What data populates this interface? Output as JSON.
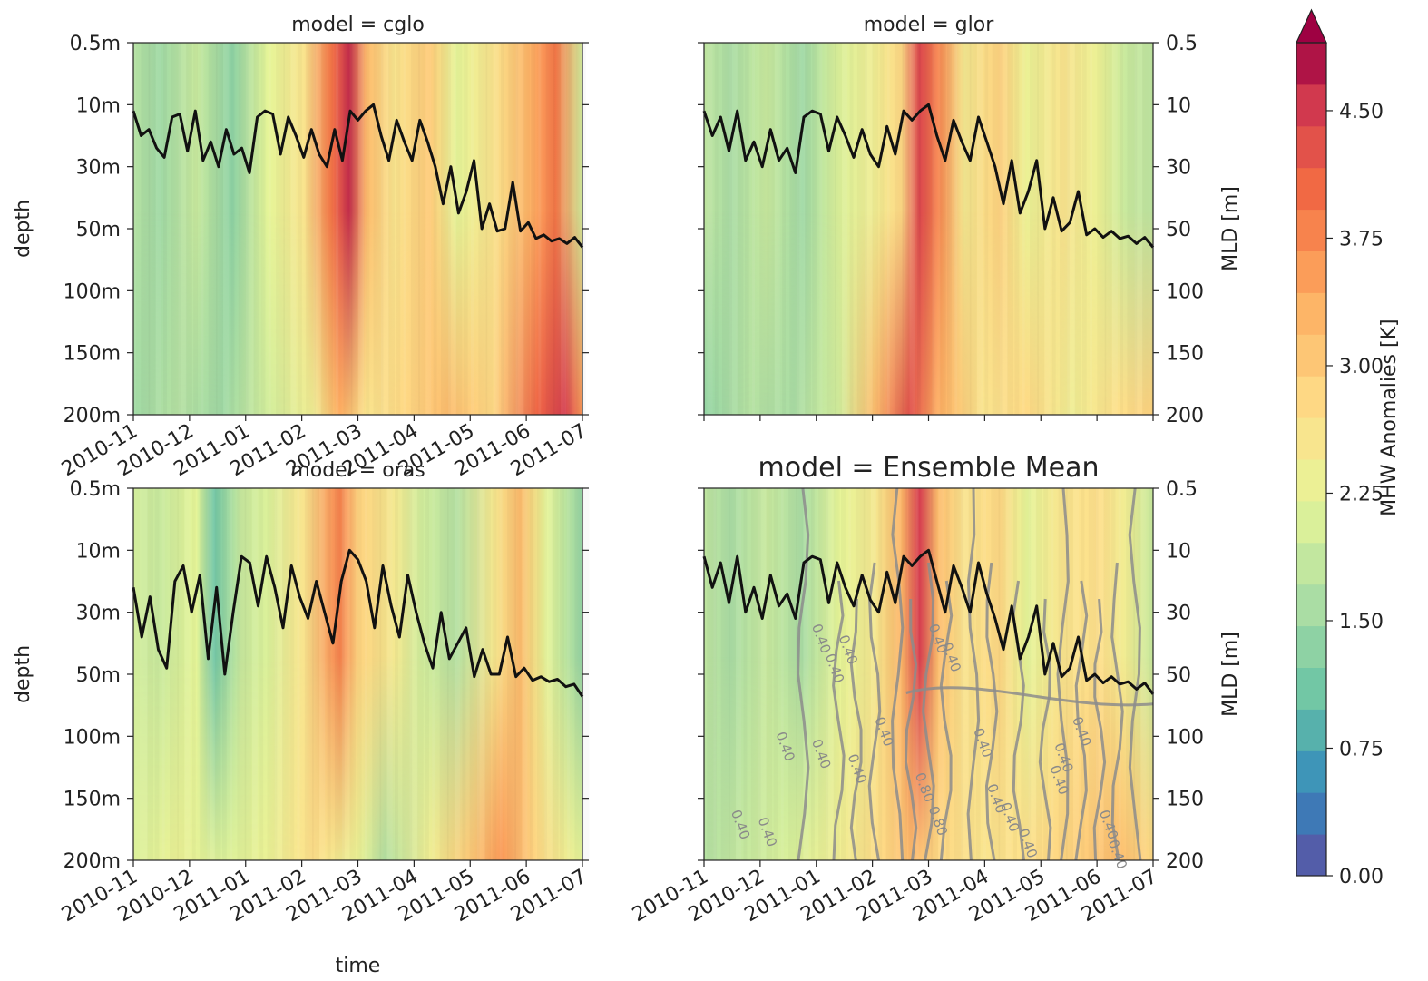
{
  "chart_data": {
    "type": "heatmap",
    "x_ticks": [
      "2010-11",
      "2010-12",
      "2011-01",
      "2011-02",
      "2011-03",
      "2011-04",
      "2011-05",
      "2011-06",
      "2011-07"
    ],
    "x_label": "time",
    "y_label_left": "depth",
    "y_label_right": "MLD [m]",
    "depth_ticks_left": [
      "0.5m",
      "10m",
      "30m",
      "50m",
      "100m",
      "150m",
      "200m"
    ],
    "depth_ticks_right": [
      "0.5",
      "10",
      "30",
      "50",
      "100",
      "150",
      "200"
    ],
    "depth_levels": [
      0.5,
      10,
      30,
      50,
      100,
      150,
      200
    ],
    "colorbar": {
      "label": "MHW Anomalies [K]",
      "ticks": [
        "0.00",
        "0.75",
        "1.50",
        "2.25",
        "3.00",
        "3.75",
        "4.50"
      ],
      "values": [
        0.0,
        0.75,
        1.5,
        2.25,
        3.0,
        3.75,
        4.5
      ],
      "range": [
        0,
        4.9
      ],
      "extend": "max",
      "colormap": "Spectral_r"
    },
    "panels": [
      {
        "title": "model = cglo",
        "mld": [
          12,
          20,
          18,
          24,
          27,
          14,
          13,
          25,
          12,
          28,
          22,
          30,
          18,
          26,
          24,
          32,
          14,
          12,
          13,
          26,
          14,
          20,
          27,
          18,
          26,
          30,
          18,
          28,
          12,
          15,
          12,
          10,
          20,
          28,
          15,
          22,
          28,
          15,
          22,
          30,
          42,
          30,
          45,
          38,
          28,
          50,
          42,
          52,
          50,
          35,
          52,
          48,
          58,
          55,
          60,
          58,
          62,
          57,
          65
        ]
      },
      {
        "title": "model = glor",
        "mld": [
          12,
          20,
          14,
          25,
          12,
          28,
          22,
          30,
          18,
          28,
          24,
          32,
          14,
          12,
          13,
          25,
          14,
          20,
          27,
          18,
          26,
          30,
          17,
          26,
          12,
          15,
          12,
          10,
          20,
          28,
          15,
          22,
          28,
          14,
          22,
          30,
          42,
          28,
          45,
          38,
          28,
          50,
          40,
          52,
          48,
          38,
          55,
          50,
          57,
          52,
          58,
          56,
          62,
          57,
          65
        ]
      },
      {
        "title": "model = oras",
        "mld": [
          22,
          38,
          25,
          42,
          48,
          20,
          15,
          30,
          18,
          45,
          22,
          50,
          30,
          12,
          14,
          28,
          12,
          22,
          35,
          15,
          25,
          32,
          20,
          30,
          40,
          20,
          10,
          13,
          20,
          35,
          15,
          28,
          38,
          18,
          30,
          40,
          48,
          30,
          45,
          40,
          35,
          52,
          42,
          50,
          50,
          38,
          52,
          48,
          55,
          52,
          56,
          54,
          60,
          58,
          68
        ]
      },
      {
        "title": "model = Ensemble Mean",
        "mld": [
          12,
          22,
          14,
          27,
          12,
          30,
          22,
          32,
          18,
          28,
          24,
          32,
          14,
          12,
          13,
          27,
          14,
          22,
          28,
          18,
          26,
          30,
          17,
          27,
          12,
          15,
          12,
          10,
          20,
          30,
          15,
          22,
          30,
          14,
          24,
          32,
          42,
          28,
          45,
          38,
          28,
          50,
          40,
          52,
          48,
          38,
          55,
          50,
          57,
          52,
          58,
          56,
          62,
          57,
          66
        ],
        "contour_labels": [
          "0.40",
          "0.40",
          "0.40",
          "0.40",
          "0.40",
          "0.40",
          "0.40",
          "0.40",
          "0.40",
          "0.40",
          "0.80",
          "0.80",
          "0.40",
          "0.40",
          "0.40",
          "0.40",
          "0.40",
          "0.40",
          "0.40",
          "0.40",
          "0.40",
          "0.40"
        ]
      }
    ]
  }
}
